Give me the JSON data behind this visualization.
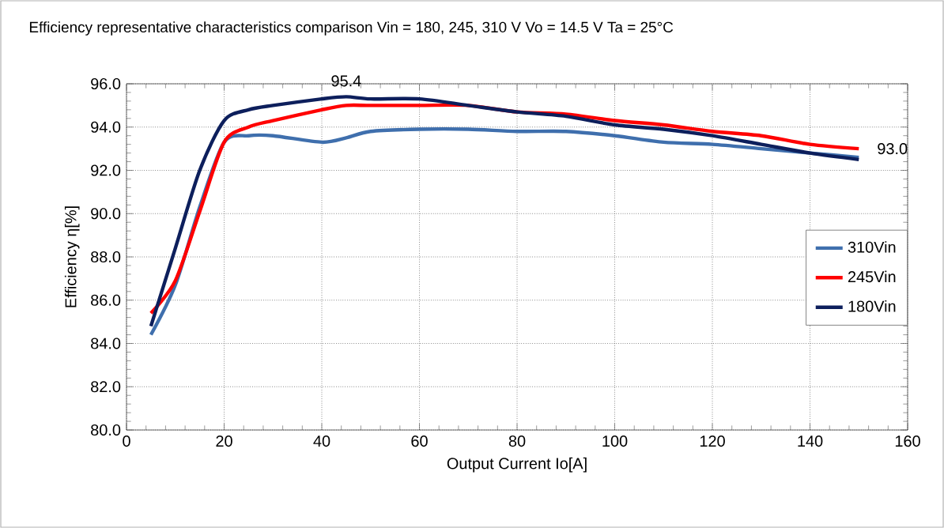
{
  "chart_data": {
    "type": "line",
    "title": "Efficiency representative characteristics comparison Vin = 180, 245, 310 V Vo = 14.5 V Ta = 25°C",
    "xlabel": "Output Current Io[A]",
    "ylabel": "Efficiency η[%]",
    "x": [
      5,
      10,
      15,
      20,
      25,
      30,
      40,
      45,
      50,
      60,
      70,
      80,
      90,
      100,
      110,
      120,
      130,
      140,
      150
    ],
    "series": [
      {
        "name": "310Vin",
        "color": "#3f6fad",
        "values": [
          84.4,
          86.7,
          90.3,
          93.3,
          93.6,
          93.6,
          93.3,
          93.5,
          93.8,
          93.9,
          93.9,
          93.8,
          93.8,
          93.6,
          93.3,
          93.2,
          93.0,
          92.8,
          92.6
        ]
      },
      {
        "name": "245Vin",
        "color": "#ff0000",
        "values": [
          85.4,
          86.9,
          90.1,
          93.3,
          94.0,
          94.3,
          94.8,
          95.0,
          95.0,
          95.0,
          95.0,
          94.7,
          94.6,
          94.3,
          94.1,
          93.8,
          93.6,
          93.2,
          93.0
        ]
      },
      {
        "name": "180Vin",
        "color": "#0d1f5c",
        "values": [
          84.8,
          88.4,
          92.0,
          94.3,
          94.8,
          95.0,
          95.3,
          95.4,
          95.3,
          95.3,
          95.0,
          94.7,
          94.5,
          94.1,
          93.9,
          93.6,
          93.2,
          92.8,
          92.5
        ]
      }
    ],
    "xlim": [
      0,
      160
    ],
    "xticks": [
      0,
      20,
      40,
      60,
      80,
      100,
      120,
      140,
      160
    ],
    "ylim": [
      80,
      96
    ],
    "yticks": [
      {
        "value": 80,
        "label": "80.0"
      },
      {
        "value": 82,
        "label": "82.0"
      },
      {
        "value": 84,
        "label": "84.0"
      },
      {
        "value": 86,
        "label": "86.0"
      },
      {
        "value": 88,
        "label": "88.0"
      },
      {
        "value": 90,
        "label": "90.0"
      },
      {
        "value": 92,
        "label": "92.0"
      },
      {
        "value": 94,
        "label": "94.0"
      },
      {
        "value": 96,
        "label": "96.0"
      }
    ],
    "annotations": [
      {
        "text": "95.4",
        "x": 45,
        "y": 95.4
      },
      {
        "text": "93.0",
        "x": 150,
        "y": 93.0
      }
    ],
    "grid": true,
    "legend": "right",
    "marker": "none",
    "line_style": "solid"
  }
}
